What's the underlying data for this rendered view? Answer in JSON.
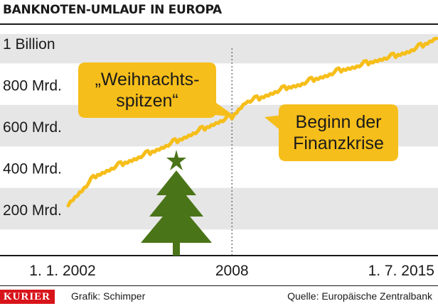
{
  "header": {
    "title": "BANKNOTEN-UMLAUF IN EUROPA"
  },
  "footer": {
    "brand": "KURIER",
    "credit": "Grafik: Schimper",
    "source": "Quelle: Europäische Zentralbank"
  },
  "colors": {
    "line": "#f6be1a",
    "callout": "#f6be1a",
    "band": "#e6e6e6",
    "tree": "#4a7418"
  },
  "chart_data": {
    "type": "line",
    "title": "BANKNOTEN-UMLAUF IN EUROPA",
    "xlabel": "",
    "ylabel": "",
    "x_range": [
      2002.0,
      2015.5
    ],
    "ylim": [
      200,
      1000
    ],
    "y_ticks": [
      {
        "value": 1000,
        "label": "1 Billion"
      },
      {
        "value": 800,
        "label": "800 Mrd."
      },
      {
        "value": 600,
        "label": "600 Mrd."
      },
      {
        "value": 400,
        "label": "400 Mrd."
      },
      {
        "value": 200,
        "label": "200 Mrd."
      }
    ],
    "x_ticks": [
      {
        "value": 2002.0,
        "label": "1. 1. 2002"
      },
      {
        "value": 2008.0,
        "label": "2008"
      },
      {
        "value": 2015.5,
        "label": "1. 7. 2015"
      }
    ],
    "grid": "horizontal bands",
    "markers": [
      {
        "x": 2008.0,
        "style": "dotted"
      }
    ],
    "annotations": [
      {
        "text": "„Weihnachts-\nspitzen“"
      },
      {
        "text": "Beginn der\nFinanzkrise"
      }
    ],
    "series": [
      {
        "seasonal_spikes": true,
        "x": [
          2002.0,
          2002.5,
          2003.0,
          2003.5,
          2004.0,
          2004.5,
          2005.0,
          2005.5,
          2006.0,
          2006.5,
          2007.0,
          2007.5,
          2008.0,
          2008.5,
          2009.0,
          2009.5,
          2010.0,
          2010.5,
          2011.0,
          2011.5,
          2012.0,
          2012.5,
          2013.0,
          2013.5,
          2014.0,
          2014.5,
          2015.0,
          2015.5
        ],
        "values": [
          221,
          286,
          355,
          385,
          415,
          440,
          468,
          495,
          525,
          555,
          585,
          615,
          640,
          710,
          730,
          755,
          780,
          795,
          820,
          840,
          865,
          880,
          900,
          918,
          935,
          955,
          985,
          1020
        ]
      }
    ]
  }
}
